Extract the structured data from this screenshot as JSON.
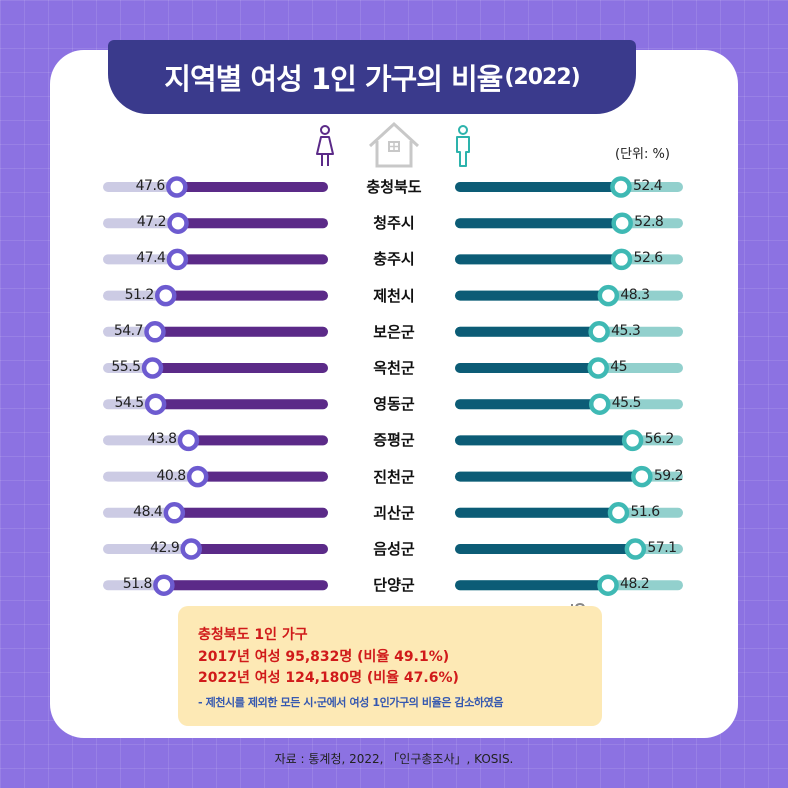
{
  "title": {
    "main": "지역별 여성 1인 가구의 비율",
    "year": "(2022)"
  },
  "unit_label": "(단위:  %)",
  "icons": {
    "female": "female-figure-icon",
    "house": "house-icon",
    "male": "male-figure-icon",
    "clip": "paperclip-icon"
  },
  "colors": {
    "female_dark": "#5b2a88",
    "female_light": "#cccbe4",
    "female_marker": "#6d5bd0",
    "male_dark": "#0c5c76",
    "male_light": "#92d0cd",
    "male_marker": "#3fb9b4",
    "banner": "#3a3a8c"
  },
  "chart_data": {
    "type": "bar",
    "categories": [
      "충청북도",
      "청주시",
      "충주시",
      "제천시",
      "보은군",
      "옥천군",
      "영동군",
      "증평군",
      "진천군",
      "괴산군",
      "음성군",
      "단양군"
    ],
    "female": {
      "values": [
        47.6,
        47.2,
        47.4,
        51.2,
        54.7,
        55.5,
        54.5,
        43.8,
        40.8,
        48.4,
        42.9,
        51.8
      ],
      "labels": [
        "47.6",
        "47.2",
        "47.4",
        "51.2",
        "54.7",
        "55.5",
        "54.5",
        "43.8",
        "40.8",
        "48.4",
        "42.9",
        "51.8"
      ]
    },
    "male": {
      "values": [
        52.4,
        52.8,
        52.6,
        48.3,
        45.3,
        45,
        45.5,
        56.2,
        59.2,
        51.6,
        57.1,
        48.2
      ],
      "labels": [
        "52.4",
        "52.8",
        "52.6",
        "48.3",
        "45.3",
        "45",
        "45.5",
        "56.2",
        "59.2",
        "51.6",
        "57.1",
        "48.2"
      ]
    },
    "scale_max": 70
  },
  "note": {
    "line1": "충청북도 1인 가구",
    "line2": "2017년 여성 95,832명 (비율 49.1%)",
    "line3": "2022년  여성 124,180명 (비율 47.6%)",
    "line4": "- 제천시를 제외한 모든 시·군에서 여성 1인가구의 비율은 감소하였음"
  },
  "source": "자료 : 통계청, 2022, 「인구총조사」, KOSIS."
}
